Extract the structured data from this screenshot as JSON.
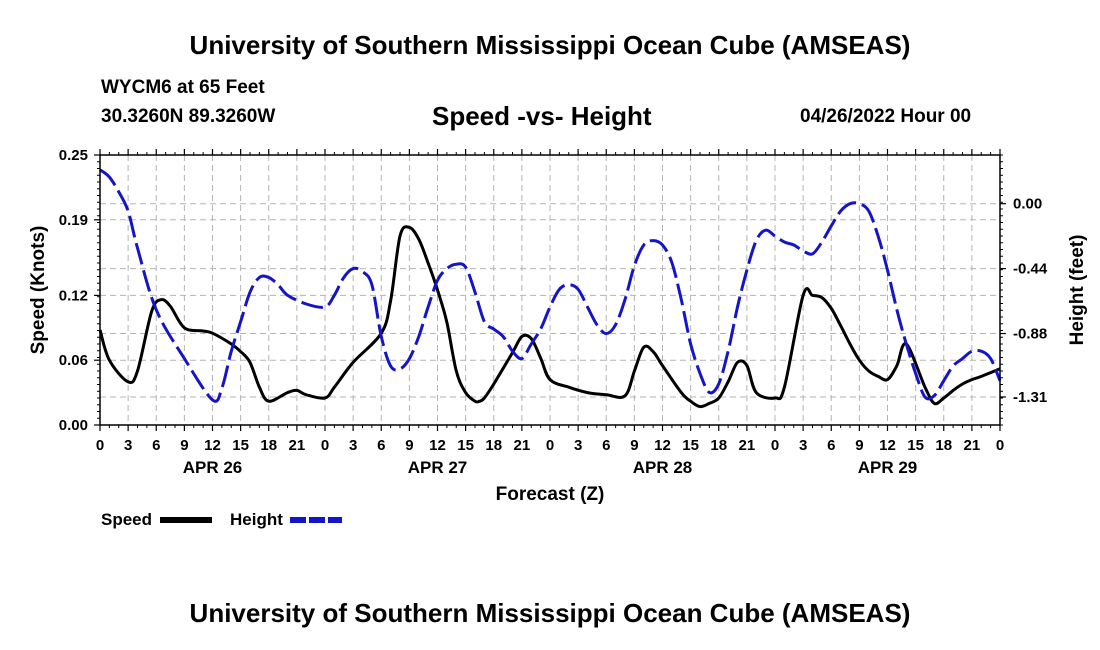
{
  "header": {
    "title": "University of Southern Mississippi Ocean Cube (AMSEAS)",
    "station": "WYCM6 at 65 Feet",
    "coords": "30.3260N  89.3260W",
    "plot_title": "Speed -vs- Height",
    "run_date": "04/26/2022 Hour 00"
  },
  "footer": {
    "title": "University of Southern Mississippi Ocean Cube (AMSEAS)"
  },
  "chart_data": {
    "type": "line",
    "xlabel": "Forecast (Z)",
    "ylabel_left": "Speed (Knots)",
    "ylabel_right": "Height (feet)",
    "x_range_hours": [
      0,
      96
    ],
    "x_tick_step_hours": 3,
    "x_tick_labels": [
      "0",
      "3",
      "6",
      "9",
      "12",
      "15",
      "18",
      "21",
      "0",
      "3",
      "6",
      "9",
      "12",
      "15",
      "18",
      "21",
      "0",
      "3",
      "6",
      "9",
      "12",
      "15",
      "18",
      "21",
      "0",
      "3",
      "6",
      "9",
      "12",
      "15",
      "18",
      "21",
      "0"
    ],
    "day_labels": [
      {
        "label": "APR 26",
        "hour": 12
      },
      {
        "label": "APR 27",
        "hour": 36
      },
      {
        "label": "APR 28",
        "hour": 60
      },
      {
        "label": "APR 29",
        "hour": 84
      }
    ],
    "y_left": {
      "range": [
        0,
        0.25
      ],
      "ticks": [
        0.0,
        0.06,
        0.12,
        0.19,
        0.25
      ],
      "tick_labels": [
        "0.00",
        "0.06",
        "0.12",
        "0.19",
        "0.25"
      ]
    },
    "y_right": {
      "range": [
        -1.5,
        0.33
      ],
      "ticks": [
        -1.31,
        -0.88,
        -0.44,
        0.0
      ],
      "tick_labels": [
        "-1.31",
        "-0.88",
        "-0.44",
        "0.00"
      ]
    },
    "grid": true,
    "legend": {
      "placement": "bottom-left",
      "entries": [
        {
          "name": "Speed",
          "color": "#000000",
          "style": "solid"
        },
        {
          "name": "Height",
          "color": "#1515c8",
          "style": "dashed"
        }
      ]
    },
    "series": [
      {
        "name": "Speed",
        "axis": "left",
        "color": "#000000",
        "style": "solid",
        "x": [
          0,
          1,
          3,
          4,
          5.5,
          6.5,
          7.5,
          9,
          11,
          12,
          14,
          15,
          16,
          17,
          18,
          20,
          21,
          22,
          24,
          25,
          27,
          30,
          31,
          32,
          33,
          34,
          35,
          36,
          37,
          38,
          39,
          40,
          40.5,
          41,
          42,
          44,
          45,
          46,
          47,
          48,
          50,
          52,
          54,
          56,
          57,
          58,
          59,
          60,
          62,
          63,
          64,
          65,
          66,
          67,
          68,
          69,
          70,
          72,
          73,
          75,
          76,
          77,
          78,
          79,
          80,
          81,
          82,
          83,
          84,
          85,
          86,
          88,
          89,
          90,
          91,
          92,
          93,
          94,
          96
        ],
        "y": [
          0.088,
          0.06,
          0.04,
          0.05,
          0.105,
          0.116,
          0.11,
          0.09,
          0.087,
          0.085,
          0.075,
          0.068,
          0.058,
          0.035,
          0.022,
          0.03,
          0.032,
          0.028,
          0.025,
          0.035,
          0.058,
          0.085,
          0.115,
          0.175,
          0.183,
          0.172,
          0.15,
          0.125,
          0.095,
          0.05,
          0.03,
          0.022,
          0.022,
          0.025,
          0.038,
          0.067,
          0.082,
          0.08,
          0.062,
          0.042,
          0.035,
          0.03,
          0.028,
          0.027,
          0.05,
          0.072,
          0.068,
          0.055,
          0.03,
          0.022,
          0.017,
          0.02,
          0.025,
          0.04,
          0.058,
          0.055,
          0.03,
          0.025,
          0.035,
          0.12,
          0.12,
          0.118,
          0.108,
          0.092,
          0.075,
          0.06,
          0.05,
          0.045,
          0.042,
          0.055,
          0.075,
          0.035,
          0.02,
          0.025,
          0.032,
          0.038,
          0.042,
          0.045,
          0.052
        ]
      },
      {
        "name": "Height",
        "axis": "right",
        "color": "#1515c8",
        "style": "dashed",
        "x": [
          0,
          1,
          2,
          3,
          4,
          6,
          9,
          12,
          13,
          14,
          15,
          16,
          17,
          18,
          19,
          20,
          22,
          24,
          25,
          26,
          27,
          28,
          29,
          30,
          31,
          32,
          33,
          34,
          35,
          36,
          37,
          38,
          39,
          40,
          41,
          42,
          43,
          44,
          45,
          46,
          47,
          48,
          49,
          50,
          51,
          52,
          53,
          54,
          55,
          56,
          57,
          58,
          59,
          60,
          61,
          62,
          63,
          64,
          65,
          66,
          67,
          68,
          69,
          70,
          71,
          72,
          73,
          74,
          75,
          76,
          77,
          78,
          79,
          80,
          81,
          82,
          83,
          84,
          85,
          86,
          87,
          88,
          89,
          90,
          91,
          92,
          93,
          94,
          95,
          96
        ],
        "y": [
          0.23,
          0.18,
          0.08,
          -0.05,
          -0.3,
          -0.72,
          -1.05,
          -1.33,
          -1.25,
          -1.0,
          -0.8,
          -0.6,
          -0.5,
          -0.5,
          -0.55,
          -0.62,
          -0.68,
          -0.7,
          -0.62,
          -0.5,
          -0.44,
          -0.46,
          -0.55,
          -0.9,
          -1.1,
          -1.12,
          -1.05,
          -0.9,
          -0.7,
          -0.52,
          -0.44,
          -0.41,
          -0.43,
          -0.6,
          -0.8,
          -0.85,
          -0.9,
          -1.0,
          -1.05,
          -0.95,
          -0.85,
          -0.7,
          -0.58,
          -0.55,
          -0.58,
          -0.7,
          -0.82,
          -0.88,
          -0.82,
          -0.65,
          -0.42,
          -0.28,
          -0.25,
          -0.28,
          -0.4,
          -0.65,
          -0.95,
          -1.15,
          -1.28,
          -1.22,
          -1.0,
          -0.7,
          -0.45,
          -0.25,
          -0.18,
          -0.22,
          -0.26,
          -0.28,
          -0.32,
          -0.34,
          -0.26,
          -0.15,
          -0.05,
          0.0,
          0.0,
          -0.05,
          -0.22,
          -0.45,
          -0.72,
          -0.95,
          -1.15,
          -1.31,
          -1.3,
          -1.2,
          -1.1,
          -1.05,
          -1.0,
          -1.0,
          -1.05,
          -1.2
        ]
      }
    ]
  }
}
